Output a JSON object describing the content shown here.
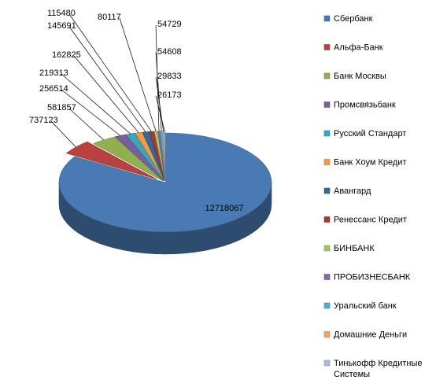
{
  "chart_data": {
    "type": "pie",
    "title": "",
    "categories": [
      "Сбербанк",
      "Альфа-Банк",
      "Банк Москвы",
      "Промсвязьбанк",
      "Русский Стандарт",
      "Банк Хоум Кредит",
      "Авангард",
      "Ренессанс Кредит",
      "БИНБАНК",
      "ПРОБИЗНЕСБАНК",
      "Уральский банк",
      "Домашние Деньги",
      "Тинькофф Кредитные Системы"
    ],
    "legend_lines": [
      [
        "Сбербанк"
      ],
      [
        "Альфа-Банк"
      ],
      [
        "Банк Москвы"
      ],
      [
        "Промсвязьбанк"
      ],
      [
        "Русский Стандарт"
      ],
      [
        "Банк Хоум Кредит"
      ],
      [
        "Авангард"
      ],
      [
        "Ренессанс Кредит"
      ],
      [
        "БИНБАНК"
      ],
      [
        "ПРОБИЗНЕСБАНК"
      ],
      [
        "Уральский банк"
      ],
      [
        "Домашние Деньги"
      ],
      [
        "Тинькофф Кредитные",
        "Системы"
      ]
    ],
    "values": [
      12718067,
      737123,
      581857,
      256514,
      219313,
      162825,
      145691,
      115480,
      80117,
      54729,
      54608,
      29833,
      26173
    ],
    "colors": [
      "#4a7ab4",
      "#b8423f",
      "#90b050",
      "#7a5e9c",
      "#3fa3bd",
      "#f29a46",
      "#2f6c9c",
      "#a03a36",
      "#a6c16d",
      "#8668a3",
      "#4fb2cc",
      "#f0a868",
      "#a7bbd9"
    ],
    "legend_position": "right",
    "three_d": true
  }
}
